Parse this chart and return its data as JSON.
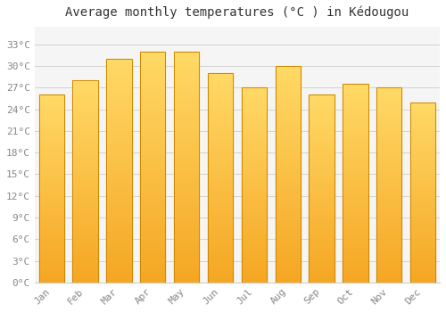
{
  "title": "Average monthly temperatures (°C ) in Kédougou",
  "months": [
    "Jan",
    "Feb",
    "Mar",
    "Apr",
    "May",
    "Jun",
    "Jul",
    "Aug",
    "Sep",
    "Oct",
    "Nov",
    "Dec"
  ],
  "values": [
    26,
    28,
    31,
    32,
    32,
    29,
    27,
    30,
    26,
    27.5,
    27,
    25
  ],
  "bar_color_bottom": "#F5A623",
  "bar_color_top": "#FFD966",
  "bar_edge_color": "#CC8800",
  "yticks": [
    0,
    3,
    6,
    9,
    12,
    15,
    18,
    21,
    24,
    27,
    30,
    33
  ],
  "ylim": [
    0,
    35.5
  ],
  "background_color": "#FFFFFF",
  "plot_bg_color": "#F5F5F5",
  "grid_color": "#CCCCCC",
  "title_fontsize": 10,
  "tick_fontsize": 8,
  "tick_color": "#888888",
  "bar_width": 0.75
}
